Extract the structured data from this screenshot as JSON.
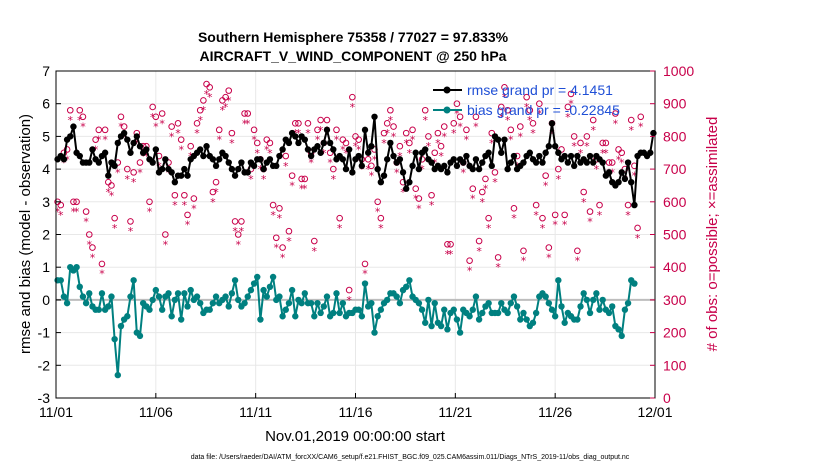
{
  "title_line1": "Southern Hemisphere 75358 / 77027 = 97.833%",
  "title_line2": "AIRCRAFT_V_WIND_COMPONENT @ 250 hPa",
  "xlabel": "Nov.01,2019 00:00:00 start",
  "ylabel_left": "rmse and bias (model - observation)",
  "ylabel_right": "# of obs: o=possible; ×=assimilated",
  "footnote": "data file: /Users/raeder/DAI/ATM_forcXX/CAM6_setup/f.e21.FHIST_BGC.f09_025.CAM6assim.011/Diags_NTrS_2019-11/obs_diag_output.nc",
  "colors": {
    "rmse": "#000000",
    "bias": "#008080",
    "obs": "#c8004a",
    "zero": "#bdbdbd",
    "legend_text": "#1f4fd6"
  },
  "chart_data": {
    "type": "line",
    "xlim": [
      0,
      30
    ],
    "ylim_left": [
      -3,
      7
    ],
    "ylim_right": [
      0,
      1000
    ],
    "x_ticks": [
      0,
      5,
      10,
      15,
      20,
      25,
      30
    ],
    "x_tick_labels": [
      "11/01",
      "11/06",
      "11/11",
      "11/16",
      "11/21",
      "11/26",
      "12/01"
    ],
    "y_ticks_left": [
      -3,
      -2,
      -1,
      0,
      1,
      2,
      3,
      4,
      5,
      6,
      7
    ],
    "y_ticks_right": [
      0,
      100,
      200,
      300,
      400,
      500,
      600,
      700,
      800,
      900,
      1000
    ],
    "legend": [
      "rmse grand pr = 4.1451",
      "bias grand pr = -0.22845"
    ],
    "series": [
      {
        "name": "rmse",
        "axis": "left",
        "values": [
          4.3,
          4.4,
          4.3,
          4.9,
          5.0,
          5.3,
          4.5,
          4.4,
          4.2,
          4.2,
          4.2,
          4.6,
          4.3,
          4.2,
          4.4,
          4.5,
          3.8,
          4.2,
          4.1,
          4.8,
          5.0,
          5.1,
          4.9,
          4.5,
          4.8,
          5.0,
          4.7,
          4.5,
          4.6,
          4.3,
          4.2,
          4.6,
          3.9,
          4.0,
          4.3,
          4.0,
          3.9,
          3.6,
          3.8,
          3.8,
          4.0,
          3.8,
          4.3,
          4.4,
          4.5,
          4.6,
          4.4,
          4.7,
          4.4,
          4.3,
          4.1,
          4.3,
          4.5,
          4.4,
          4.2,
          4.0,
          3.8,
          4.0,
          4.2,
          3.9,
          3.9,
          4.2,
          4.1,
          4.3,
          4.3,
          4.0,
          4.2,
          4.3,
          4.1,
          4.1,
          4.4,
          4.6,
          4.9,
          4.8,
          5.1,
          5.0,
          4.8,
          5.0,
          4.9,
          4.6,
          4.4,
          4.6,
          4.7,
          4.5,
          4.8,
          5.2,
          4.8,
          4.6,
          4.3,
          4.4,
          4.3,
          4.0,
          4.6,
          3.9,
          4.3,
          4.4,
          4.1,
          5.2,
          4.5,
          4.7,
          5.6,
          4.0,
          3.6,
          3.8,
          4.3,
          4.8,
          4.4,
          4.2,
          4.3,
          3.9,
          3.4,
          3.6,
          4.1,
          4.5,
          4.0,
          4.5,
          4.6,
          4.3,
          4.2,
          4.0,
          4.1,
          4.0,
          4.1,
          3.9,
          4.2,
          4.3,
          4.1,
          4.3,
          4.2,
          4.4,
          4.1,
          4.0,
          4.3,
          4.0,
          4.2,
          4.4,
          4.5,
          4.1,
          5.0,
          4.9,
          4.5,
          4.9,
          4.0,
          4.2,
          4.4,
          4.0,
          4.1,
          4.2,
          4.4,
          4.5,
          4.3,
          4.2,
          4.4,
          4.2,
          4.5,
          4.7,
          5.4,
          4.7,
          4.5,
          4.3,
          4.4,
          4.2,
          4.4,
          4.1,
          4.4,
          4.2,
          4.3,
          4.2,
          4.4,
          4.2,
          4.4,
          4.3,
          4.2,
          3.8,
          3.9,
          3.6,
          3.5,
          3.6,
          3.9,
          3.7,
          4.2,
          3.6,
          2.9,
          4.4,
          4.5,
          4.5,
          4.4,
          4.5,
          5.1
        ]
      },
      {
        "name": "bias",
        "axis": "left",
        "values": [
          0.6,
          0.6,
          0.1,
          -0.1,
          1.0,
          0.9,
          1.0,
          0.4,
          0.1,
          -0.1,
          0.2,
          -0.2,
          -0.3,
          -0.3,
          0.2,
          -0.3,
          -0.2,
          0.1,
          -1.2,
          -2.3,
          -0.8,
          -0.6,
          -0.5,
          0.1,
          0.6,
          -1.0,
          -1.1,
          -0.1,
          -0.2,
          -0.3,
          0.0,
          0.3,
          0.1,
          -0.3,
          0.1,
          0.2,
          -0.5,
          0.0,
          0.2,
          -0.6,
          0.2,
          -0.2,
          0.3,
          0.0,
          0.1,
          -0.1,
          -0.4,
          -0.3,
          -0.3,
          -0.1,
          0.1,
          -0.1,
          0.0,
          0.1,
          -0.2,
          0.2,
          0.6,
          0.0,
          -0.2,
          -0.1,
          0.1,
          0.3,
          0.5,
          0.7,
          -0.6,
          0.3,
          0.1,
          0.4,
          0.7,
          0.0,
          0.1,
          -0.5,
          -0.3,
          -0.1,
          0.3,
          -0.5,
          0.0,
          -0.1,
          0.2,
          -0.1,
          -0.1,
          -0.5,
          -0.1,
          -0.4,
          -0.2,
          0.1,
          -0.5,
          -0.4,
          0.2,
          -0.4,
          -0.1,
          -0.5,
          -0.4,
          -0.4,
          -0.3,
          -0.3,
          -0.5,
          0.5,
          -0.2,
          -0.1,
          -1.0,
          -0.5,
          -0.3,
          -0.1,
          0.0,
          0.2,
          0.2,
          0.1,
          -0.1,
          0.3,
          0.4,
          0.6,
          0.1,
          0.0,
          -0.1,
          -0.3,
          -0.7,
          0.0,
          -0.8,
          -0.1,
          -0.7,
          -0.8,
          -0.3,
          -0.9,
          -0.4,
          -0.3,
          -0.6,
          -1.0,
          -0.3,
          -0.4,
          -0.5,
          -0.3,
          0.1,
          -0.6,
          -0.4,
          -0.2,
          -0.1,
          -0.4,
          -0.4,
          -0.4,
          -0.1,
          -0.3,
          -0.4,
          -0.1,
          0.1,
          -0.2,
          -0.6,
          -0.4,
          -0.6,
          -0.8,
          -0.7,
          -0.4,
          0.1,
          0.2,
          0.1,
          -0.1,
          -0.3,
          -0.5,
          0.6,
          -0.2,
          -0.7,
          -0.4,
          -0.5,
          -0.6,
          -0.6,
          -0.2,
          0.2,
          0.0,
          -0.4,
          0.0,
          0.2,
          -0.3,
          0.0,
          -0.3,
          -0.4,
          -0.2,
          -0.8,
          -0.9,
          -1.1,
          -0.3,
          -0.1,
          0.6,
          0.5
        ]
      },
      {
        "name": "obs possible (o)",
        "axis": "right",
        "values": [
          600,
          590,
          750,
          760,
          880,
          600,
          600,
          880,
          860,
          570,
          500,
          460,
          790,
          820,
          410,
          820,
          660,
          650,
          550,
          720,
          860,
          830,
          700,
          540,
          690,
          810,
          720,
          770,
          770,
          600,
          890,
          860,
          740,
          870,
          500,
          720,
          830,
          620,
          840,
          790,
          620,
          560,
          770,
          610,
          840,
          880,
          910,
          960,
          950,
          630,
          660,
          820,
          910,
          920,
          940,
          810,
          540,
          500,
          540,
          870,
          870,
          700,
          820,
          780,
          730,
          700,
          790,
          780,
          590,
          490,
          580,
          460,
          740,
          510,
          680,
          840,
          840,
          670,
          670,
          840,
          750,
          480,
          820,
          850,
          780,
          850,
          750,
          700,
          820,
          550,
          790,
          780,
          330,
          920,
          800,
          790,
          730,
          410,
          730,
          710,
          760,
          600,
          550,
          810,
          840,
          880,
          830,
          720,
          770,
          660,
          810,
          780,
          820,
          640,
          610,
          730,
          880,
          800,
          620,
          750,
          810,
          770,
          830,
          470,
          470,
          840,
          900,
          860,
          720,
          820,
          420,
          640,
          860,
          480,
          630,
          670,
          550,
          810,
          690,
          430,
          890,
          950,
          880,
          820,
          580,
          740,
          830,
          450,
          920,
          880,
          840,
          590,
          900,
          550,
          680,
          460,
          840,
          560,
          700,
          760,
          560,
          890,
          930,
          800,
          450,
          780,
          630,
          800,
          570,
          850,
          730,
          590,
          780,
          780,
          720,
          720,
          870,
          760,
          750,
          700,
          590,
          850,
          710,
          520,
          860
        ]
      },
      {
        "name": "obs assimilated (×)",
        "axis": "right",
        "values": [
          570,
          560,
          720,
          730,
          850,
          570,
          570,
          850,
          830,
          540,
          470,
          430,
          760,
          790,
          380,
          790,
          630,
          620,
          520,
          690,
          830,
          800,
          670,
          510,
          660,
          780,
          690,
          740,
          740,
          570,
          860,
          830,
          710,
          840,
          470,
          690,
          800,
          590,
          810,
          760,
          590,
          530,
          740,
          580,
          810,
          850,
          880,
          930,
          920,
          600,
          630,
          790,
          880,
          890,
          910,
          780,
          510,
          470,
          510,
          840,
          840,
          670,
          790,
          750,
          700,
          670,
          760,
          750,
          560,
          460,
          550,
          430,
          710,
          480,
          650,
          810,
          810,
          640,
          640,
          810,
          720,
          450,
          790,
          820,
          750,
          820,
          720,
          670,
          790,
          520,
          760,
          750,
          300,
          890,
          770,
          760,
          700,
          380,
          700,
          680,
          730,
          570,
          520,
          780,
          810,
          850,
          800,
          690,
          740,
          630,
          780,
          750,
          790,
          610,
          580,
          700,
          850,
          770,
          590,
          720,
          780,
          740,
          800,
          440,
          440,
          810,
          870,
          830,
          690,
          790,
          390,
          610,
          830,
          450,
          600,
          640,
          520,
          780,
          660,
          400,
          860,
          920,
          850,
          790,
          550,
          710,
          800,
          420,
          890,
          850,
          810,
          560,
          870,
          520,
          650,
          430,
          810,
          530,
          670,
          730,
          530,
          860,
          900,
          770,
          420,
          750,
          600,
          770,
          540,
          820,
          700,
          560,
          750,
          750,
          690,
          690,
          840,
          730,
          720,
          670,
          560,
          820,
          680,
          490,
          830
        ]
      }
    ]
  }
}
